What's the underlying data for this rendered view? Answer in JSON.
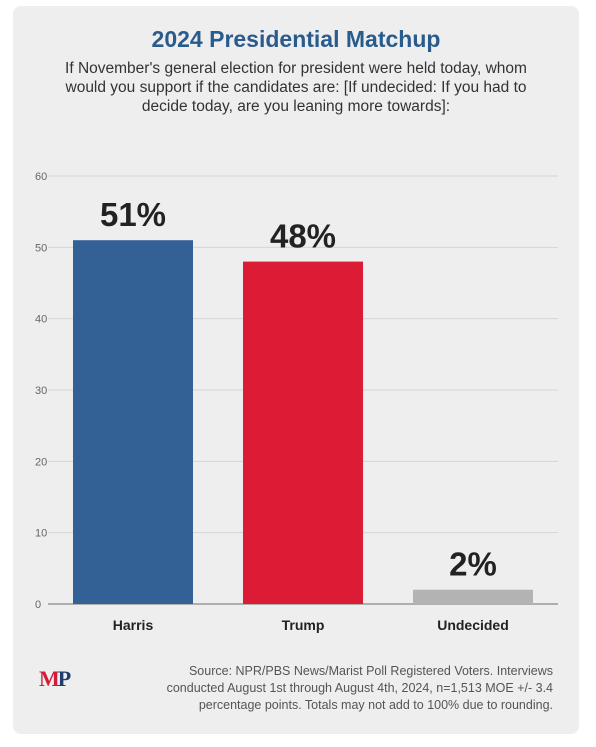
{
  "header": {
    "title": "2024 Presidential Matchup",
    "subtitle": "If November's general election for president were held today, whom would you support if the candidates are: [If undecided: If you had to decide today, are you leaning more towards]:"
  },
  "chart_data": {
    "type": "bar",
    "categories": [
      "Harris",
      "Trump",
      "Undecided"
    ],
    "values": [
      51,
      48,
      2
    ],
    "value_labels": [
      "51%",
      "48%",
      "2%"
    ],
    "colors": [
      "#336196",
      "#dc1c34",
      "#b3b3b3"
    ],
    "ylim": [
      0,
      60
    ],
    "yticks": [
      0,
      10,
      20,
      30,
      40,
      50,
      60
    ],
    "grid": true,
    "legend": "none"
  },
  "footer": {
    "logo_m": "M",
    "logo_p": "P",
    "source": "Source: NPR/PBS News/Marist Poll Registered Voters. Interviews conducted August 1st through August 4th, 2024, n=1,513 MOE +/- 3.4 percentage points. Totals may not add to 100% due to rounding."
  }
}
